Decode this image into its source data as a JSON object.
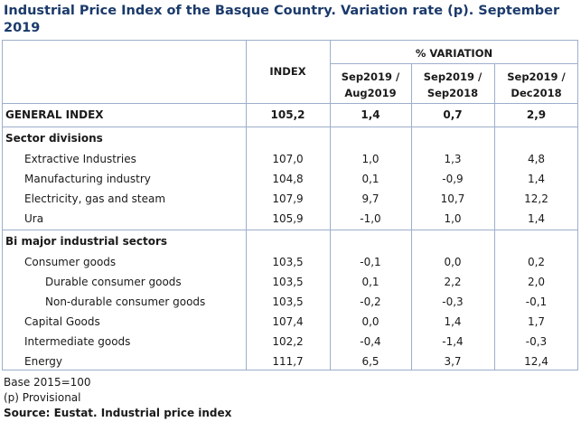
{
  "title": "Industrial Price Index of the Basque Country. Variation rate (p). September 2019",
  "headers": {
    "index": "INDEX",
    "variation": "% VARIATION",
    "col1_l1": "Sep2019 /",
    "col1_l2": "Aug2019",
    "col2_l1": "Sep2019 /",
    "col2_l2": "Sep2018",
    "col3_l1": "Sep2019 /",
    "col3_l2": "Dec2018"
  },
  "general": {
    "label": "GENERAL INDEX",
    "index": "105,2",
    "v1": "1,4",
    "v2": "0,7",
    "v3": "2,9"
  },
  "section1": {
    "title": "Sector divisions",
    "rows": [
      {
        "label": "Extractive Industries",
        "index": "107,0",
        "v1": "1,0",
        "v2": "1,3",
        "v3": "4,8"
      },
      {
        "label": "Manufacturing industry",
        "index": "104,8",
        "v1": "0,1",
        "v2": "-0,9",
        "v3": "1,4"
      },
      {
        "label": "Electricity, gas and steam",
        "index": "107,9",
        "v1": "9,7",
        "v2": "10,7",
        "v3": "12,2"
      },
      {
        "label": "Ura",
        "index": "105,9",
        "v1": "-1,0",
        "v2": "1,0",
        "v3": "1,4"
      }
    ]
  },
  "section2": {
    "title": "Bi major industrial sectors",
    "rows": [
      {
        "label": "Consumer goods",
        "index": "103,5",
        "v1": "-0,1",
        "v2": "0,0",
        "v3": "0,2"
      },
      {
        "label": "Durable consumer goods",
        "index": "103,5",
        "v1": "0,1",
        "v2": "2,2",
        "v3": "2,0"
      },
      {
        "label": "Non-durable consumer goods",
        "index": "103,5",
        "v1": "-0,2",
        "v2": "-0,3",
        "v3": "-0,1"
      },
      {
        "label": "Capital Goods",
        "index": "107,4",
        "v1": "0,0",
        "v2": "1,4",
        "v3": "1,7"
      },
      {
        "label": "Intermediate goods",
        "index": "102,2",
        "v1": "-0,4",
        "v2": "-1,4",
        "v3": "-0,3"
      },
      {
        "label": "Energy",
        "index": "111,7",
        "v1": "6,5",
        "v2": "3,7",
        "v3": "12,4"
      }
    ]
  },
  "footer": {
    "base": "Base 2015=100",
    "provisional": "(p) Provisional",
    "source": "Source: Eustat. Industrial price index"
  }
}
